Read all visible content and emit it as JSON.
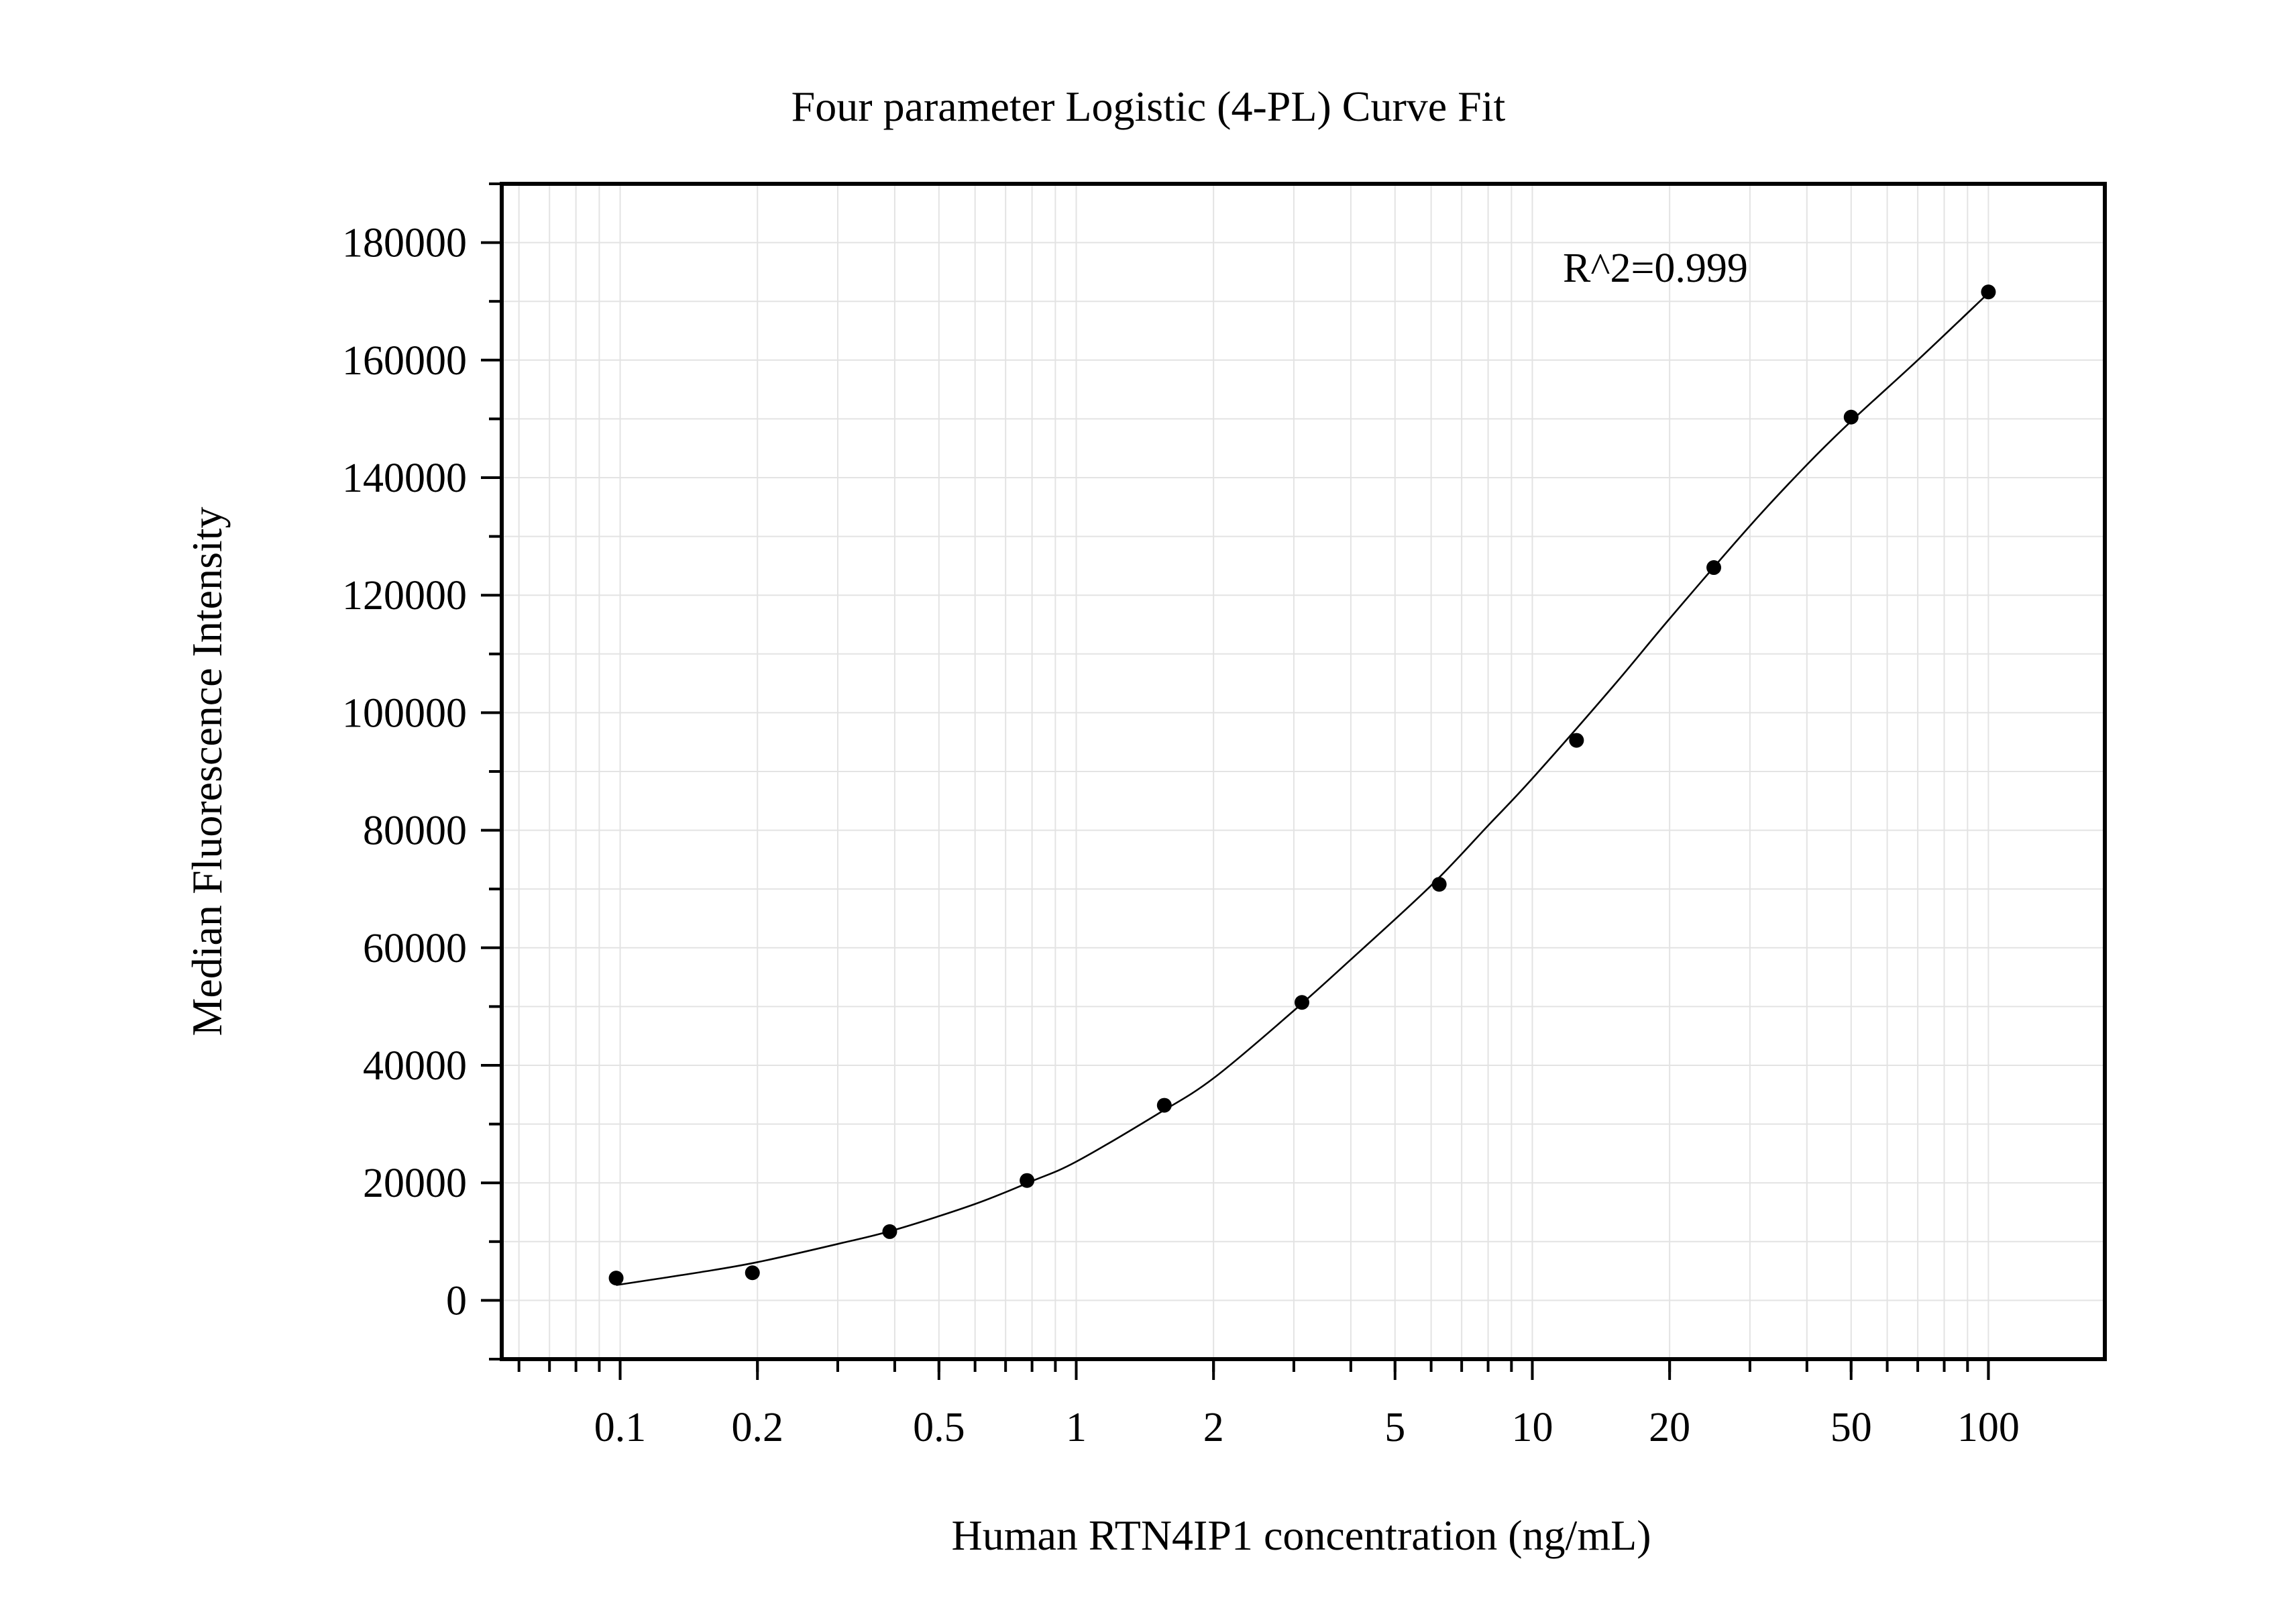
{
  "chart_data": {
    "type": "scatter",
    "title": "Four parameter Logistic (4-PL) Curve Fit",
    "xlabel": "Human RTN4IP1 concentration (ng/mL)",
    "ylabel": "Median Fluorescence Intensity",
    "x_scale": "log",
    "xlim": [
      0.055,
      180
    ],
    "ylim": [
      -10000,
      190000
    ],
    "grid": true,
    "x_ticks": [
      {
        "value": 0.1,
        "label": "0.1"
      },
      {
        "value": 0.2,
        "label": "0.2"
      },
      {
        "value": 0.5,
        "label": "0.5"
      },
      {
        "value": 1,
        "label": "1"
      },
      {
        "value": 2,
        "label": "2"
      },
      {
        "value": 5,
        "label": "5"
      },
      {
        "value": 10,
        "label": "10"
      },
      {
        "value": 20,
        "label": "20"
      },
      {
        "value": 50,
        "label": "50"
      },
      {
        "value": 100,
        "label": "100"
      }
    ],
    "y_ticks": [
      {
        "value": 0,
        "label": "0"
      },
      {
        "value": 20000,
        "label": "20000"
      },
      {
        "value": 40000,
        "label": "40000"
      },
      {
        "value": 60000,
        "label": "60000"
      },
      {
        "value": 80000,
        "label": "80000"
      },
      {
        "value": 100000,
        "label": "100000"
      },
      {
        "value": 120000,
        "label": "120000"
      },
      {
        "value": 140000,
        "label": "140000"
      },
      {
        "value": 160000,
        "label": "160000"
      },
      {
        "value": 180000,
        "label": "180000"
      }
    ],
    "series": [
      {
        "x": [
          0.098,
          0.195,
          0.39,
          0.78,
          1.56,
          3.125,
          6.25,
          12.5,
          25,
          50,
          100
        ],
        "y": [
          3800,
          4700,
          11700,
          20400,
          33200,
          50700,
          70800,
          95300,
          124700,
          150300,
          171600
        ]
      }
    ],
    "fit_curve": {
      "x": [
        0.098,
        0.15,
        0.2,
        0.3,
        0.4,
        0.6,
        0.8,
        1.0,
        1.5,
        2,
        3,
        4,
        6,
        8,
        10,
        15,
        20,
        30,
        40,
        50,
        70,
        100
      ],
      "y": [
        2600,
        4800,
        6500,
        9600,
        12000,
        16400,
        20300,
        23600,
        31600,
        37800,
        49300,
        58000,
        70600,
        80800,
        88800,
        104400,
        116000,
        131800,
        142200,
        149600,
        160000,
        171400
      ]
    },
    "annotations": [
      {
        "text": "R^2=0.999"
      }
    ]
  }
}
